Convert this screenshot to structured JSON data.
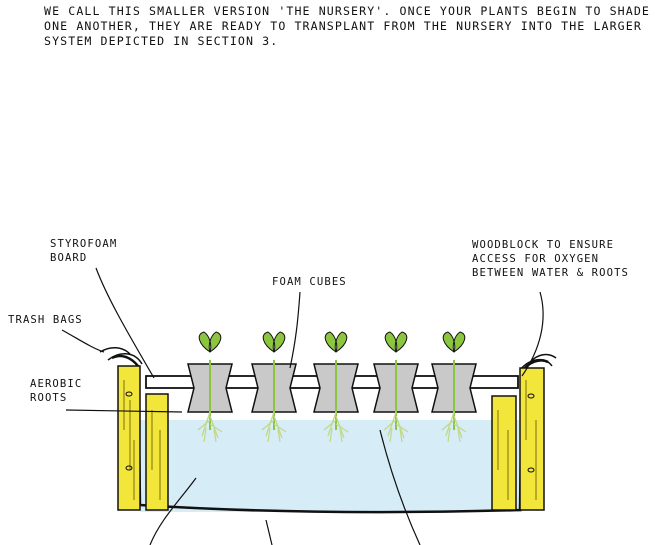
{
  "intro": {
    "lines": [
      "WE CALL THIS SMALLER VERSION 'THE NURSERY'. ONCE YOUR PLANTS BEGIN TO SHADE",
      "ONE ANOTHER, THEY ARE READY TO TRANSPLANT FROM  THE NURSERY  INTO THE LARGER",
      "SYSTEM DEPICTED IN SECTION 3."
    ]
  },
  "labels": {
    "styrofoam": [
      "STYROFOAM",
      "BOARD"
    ],
    "foam_cubes": "FOAM CUBES",
    "woodblock": [
      "WOODBLOCK TO ENSURE",
      "ACCESS FOR OXYGEN",
      "BETWEEN WATER & ROOTS"
    ],
    "trash_bags": "TRASH BAGS",
    "aerobic_roots": [
      "AEROBIC",
      "ROOTS"
    ]
  },
  "colors": {
    "wood": "#f2e63a",
    "water": "#d6ecf7",
    "foam": "#c9c9c9",
    "leaf": "#8cc63f",
    "root": "#c2d98a",
    "ink": "#111111"
  }
}
